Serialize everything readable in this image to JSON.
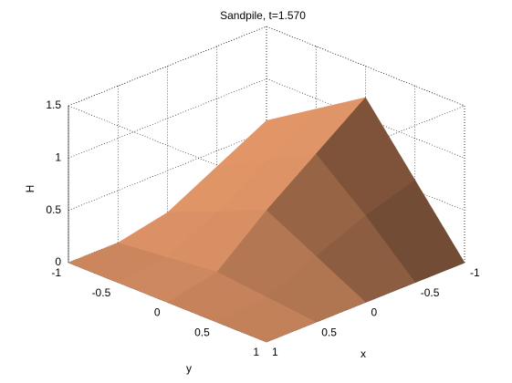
{
  "chart_data": {
    "type": "surface",
    "title": "Sandpile, t=1.570",
    "xlabel": "x",
    "ylabel": "y",
    "zlabel": "H",
    "x": [
      -1,
      -0.5,
      0,
      0.5,
      1
    ],
    "y": [
      -1,
      -0.5,
      0,
      0.5,
      1
    ],
    "z": [
      [
        0.6,
        0.35,
        0.1,
        0,
        0
      ],
      [
        0.9,
        0.6,
        0.3,
        0.05,
        0
      ],
      [
        1.2,
        0.85,
        0.5,
        0.1,
        0
      ],
      [
        0.6,
        0.45,
        0.25,
        0.05,
        0
      ],
      [
        0,
        0,
        0,
        0,
        0
      ]
    ],
    "xlim": [
      -1,
      1
    ],
    "ylim": [
      -1,
      1
    ],
    "zlim": [
      0,
      1.5
    ],
    "xticks": [
      -1,
      -0.5,
      0,
      0.5,
      1
    ],
    "yticks": [
      -1,
      -0.5,
      0,
      0.5,
      1
    ],
    "zticks": [
      0,
      0.5,
      1,
      1.5
    ],
    "grid": true,
    "color": "#d08a60"
  }
}
